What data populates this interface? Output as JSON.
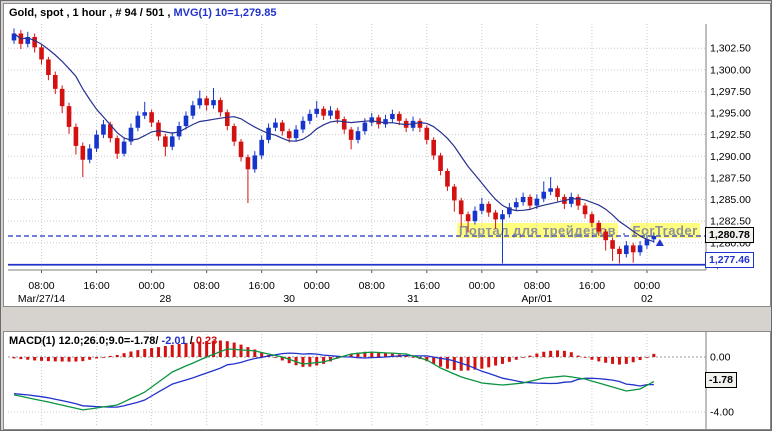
{
  "window": {
    "background": "#d6d3ce"
  },
  "main_chart": {
    "title": "Gold, spot , 1 hour , # 94 / 501 ,",
    "mvg_label": "MVG(1) 10=1,279.85",
    "watermark": [
      "Портал для трейдеров",
      ".",
      "ForTrader"
    ],
    "price_current": "1,280.78",
    "price_level": "1,277.46"
  },
  "macd_panel": {
    "title_prefix": "MACD(1) 12.0;26.0;9.0=-1.78/",
    "value_signal": "-2.01",
    "slash": "/",
    "value_hist": "0.23",
    "box_label": "-1.78"
  },
  "chart_data": [
    {
      "type": "candlestick",
      "title": "Gold, spot , 1 hour , # 94 / 501",
      "indicator_label": "MVG(1) 10=1,279.85",
      "ylim": [
        1276.85,
        1305.3
      ],
      "y_ticks": [
        [
          1302.5,
          "1,302.50"
        ],
        [
          1300,
          "1,300.00"
        ],
        [
          1297.5,
          "1,297.50"
        ],
        [
          1295,
          "1,295.00"
        ],
        [
          1292.5,
          "1,292.50"
        ],
        [
          1290,
          "1,290.00"
        ],
        [
          1287.5,
          "1,287.50"
        ],
        [
          1285,
          "1,285.00"
        ],
        [
          1282.5,
          "1,282.50"
        ],
        [
          1280,
          "1,280.00"
        ],
        [
          1277.5,
          "1,277.50"
        ]
      ],
      "x_ticks": [
        [
          4,
          "08:00"
        ],
        [
          12,
          "16:00"
        ],
        [
          20,
          "00:00"
        ],
        [
          28,
          "08:00"
        ],
        [
          36,
          "16:00"
        ],
        [
          44,
          "00:00"
        ],
        [
          52,
          "08:00"
        ],
        [
          60,
          "16:00"
        ],
        [
          68,
          "00:00"
        ],
        [
          76,
          "08:00"
        ],
        [
          84,
          "16:00"
        ],
        [
          92,
          "00:00"
        ]
      ],
      "date_ticks": [
        [
          4,
          "Mar/27/14"
        ],
        [
          22,
          "28"
        ],
        [
          40,
          "30"
        ],
        [
          58,
          "31"
        ],
        [
          76,
          "Apr/01"
        ],
        [
          92,
          "02"
        ]
      ],
      "levels": {
        "dashed_current": 1280.78,
        "solid_support": 1277.46
      },
      "mvg_period": 10,
      "colors": {
        "up": "#1535cc",
        "down": "#d41111",
        "mvg": "#26318f",
        "level": "#2233cc"
      },
      "candles": [
        [
          1303.4,
          1304.8,
          1303.0,
          1304.2
        ],
        [
          1304.2,
          1304.6,
          1302.4,
          1303.0
        ],
        [
          1303.0,
          1304.4,
          1302.6,
          1303.8
        ],
        [
          1303.8,
          1304.2,
          1302.0,
          1302.6
        ],
        [
          1302.6,
          1302.9,
          1300.6,
          1301.2
        ],
        [
          1301.2,
          1301.5,
          1298.8,
          1299.4
        ],
        [
          1299.4,
          1299.8,
          1297.2,
          1297.8
        ],
        [
          1297.8,
          1298.2,
          1295.0,
          1295.8
        ],
        [
          1295.8,
          1296.2,
          1292.6,
          1293.4
        ],
        [
          1293.4,
          1293.8,
          1290.2,
          1291.2
        ],
        [
          1291.2,
          1291.6,
          1287.6,
          1289.6
        ],
        [
          1289.6,
          1291.4,
          1289.2,
          1290.9
        ],
        [
          1290.9,
          1293.0,
          1290.5,
          1292.5
        ],
        [
          1292.5,
          1294.2,
          1292.1,
          1293.7
        ],
        [
          1293.7,
          1294.0,
          1291.6,
          1292.1
        ],
        [
          1292.1,
          1292.4,
          1289.7,
          1290.3
        ],
        [
          1290.3,
          1292.2,
          1290.0,
          1291.7
        ],
        [
          1291.7,
          1293.8,
          1291.3,
          1293.3
        ],
        [
          1293.3,
          1295.2,
          1292.9,
          1294.7
        ],
        [
          1294.7,
          1296.3,
          1294.3,
          1295.1
        ],
        [
          1295.1,
          1295.4,
          1293.4,
          1293.9
        ],
        [
          1293.9,
          1294.2,
          1291.8,
          1292.3
        ],
        [
          1292.3,
          1292.6,
          1290.0,
          1291.1
        ],
        [
          1291.1,
          1292.8,
          1290.7,
          1292.3
        ],
        [
          1292.3,
          1294.0,
          1291.9,
          1293.5
        ],
        [
          1293.5,
          1295.2,
          1293.1,
          1294.7
        ],
        [
          1294.7,
          1296.4,
          1294.3,
          1295.9
        ],
        [
          1295.9,
          1297.6,
          1295.5,
          1296.7
        ],
        [
          1296.7,
          1297.0,
          1295.3,
          1295.9
        ],
        [
          1295.9,
          1297.9,
          1295.5,
          1296.5
        ],
        [
          1296.5,
          1296.8,
          1294.6,
          1295.1
        ],
        [
          1295.1,
          1295.4,
          1293.0,
          1293.5
        ],
        [
          1293.5,
          1293.8,
          1291.2,
          1291.7
        ],
        [
          1291.7,
          1292.0,
          1289.4,
          1289.9
        ],
        [
          1289.9,
          1290.2,
          1284.6,
          1288.5
        ],
        [
          1288.5,
          1290.6,
          1288.1,
          1290.1
        ],
        [
          1290.1,
          1292.4,
          1289.7,
          1291.9
        ],
        [
          1291.9,
          1293.8,
          1291.5,
          1293.3
        ],
        [
          1293.3,
          1294.4,
          1292.9,
          1293.9
        ],
        [
          1293.9,
          1294.2,
          1292.4,
          1292.9
        ],
        [
          1292.9,
          1293.2,
          1291.6,
          1292.1
        ],
        [
          1292.1,
          1293.6,
          1291.7,
          1293.1
        ],
        [
          1293.1,
          1294.6,
          1292.7,
          1294.1
        ],
        [
          1294.1,
          1295.4,
          1293.7,
          1294.9
        ],
        [
          1294.9,
          1296.4,
          1294.5,
          1295.5
        ],
        [
          1295.5,
          1295.8,
          1294.2,
          1294.7
        ],
        [
          1294.7,
          1295.8,
          1294.3,
          1295.3
        ],
        [
          1295.3,
          1295.6,
          1293.8,
          1294.3
        ],
        [
          1294.3,
          1294.6,
          1292.6,
          1293.1
        ],
        [
          1293.1,
          1293.4,
          1290.8,
          1291.9
        ],
        [
          1291.9,
          1293.4,
          1291.5,
          1292.9
        ],
        [
          1292.9,
          1294.4,
          1292.5,
          1293.9
        ],
        [
          1293.9,
          1295.0,
          1293.5,
          1294.5
        ],
        [
          1294.5,
          1294.8,
          1293.2,
          1293.7
        ],
        [
          1293.7,
          1294.8,
          1293.3,
          1294.3
        ],
        [
          1294.3,
          1295.4,
          1293.9,
          1294.9
        ],
        [
          1294.9,
          1295.2,
          1293.6,
          1294.1
        ],
        [
          1294.1,
          1294.4,
          1292.8,
          1293.3
        ],
        [
          1293.3,
          1294.6,
          1292.9,
          1294.1
        ],
        [
          1294.1,
          1294.4,
          1292.8,
          1293.3
        ],
        [
          1293.3,
          1293.6,
          1291.4,
          1291.9
        ],
        [
          1291.9,
          1292.2,
          1289.6,
          1290.1
        ],
        [
          1290.1,
          1290.4,
          1287.8,
          1288.3
        ],
        [
          1288.3,
          1288.6,
          1286.0,
          1286.5
        ],
        [
          1286.5,
          1286.8,
          1283.6,
          1284.9
        ],
        [
          1284.9,
          1285.2,
          1281.9,
          1283.3
        ],
        [
          1283.3,
          1283.6,
          1281.2,
          1282.5
        ],
        [
          1282.5,
          1284.2,
          1282.1,
          1283.7
        ],
        [
          1283.7,
          1285.2,
          1283.3,
          1284.5
        ],
        [
          1284.5,
          1284.8,
          1283.0,
          1283.5
        ],
        [
          1283.5,
          1283.8,
          1281.6,
          1282.7
        ],
        [
          1282.7,
          1283.8,
          1277.6,
          1283.3
        ],
        [
          1283.3,
          1284.6,
          1282.9,
          1284.1
        ],
        [
          1284.1,
          1285.2,
          1283.7,
          1284.7
        ],
        [
          1284.7,
          1285.8,
          1284.3,
          1285.3
        ],
        [
          1285.3,
          1285.6,
          1283.8,
          1284.3
        ],
        [
          1284.3,
          1285.6,
          1283.9,
          1285.1
        ],
        [
          1285.1,
          1287.1,
          1284.7,
          1285.9
        ],
        [
          1285.9,
          1287.6,
          1285.5,
          1286.3
        ],
        [
          1286.3,
          1286.6,
          1284.8,
          1285.3
        ],
        [
          1285.3,
          1285.6,
          1283.9,
          1284.5
        ],
        [
          1284.5,
          1285.8,
          1284.1,
          1285.3
        ],
        [
          1285.3,
          1285.6,
          1283.8,
          1284.3
        ],
        [
          1284.3,
          1284.6,
          1282.8,
          1283.3
        ],
        [
          1283.3,
          1283.6,
          1281.8,
          1282.3
        ],
        [
          1282.3,
          1282.6,
          1280.8,
          1281.3
        ],
        [
          1281.3,
          1281.6,
          1279.1,
          1280.3
        ],
        [
          1280.3,
          1280.6,
          1277.9,
          1279.3
        ],
        [
          1279.3,
          1279.6,
          1277.6,
          1278.7
        ],
        [
          1278.7,
          1280.2,
          1278.3,
          1279.7
        ],
        [
          1279.7,
          1280.0,
          1277.7,
          1278.9
        ],
        [
          1278.9,
          1280.2,
          1278.5,
          1279.7
        ],
        [
          1279.7,
          1280.9,
          1279.3,
          1280.4
        ],
        [
          1280.4,
          1281.2,
          1280.0,
          1280.78
        ]
      ]
    },
    {
      "type": "macd",
      "label": "MACD(1) 12.0;26.0;9.0=-1.78/-2.01/0.23",
      "ylim": [
        -5.2,
        1.67
      ],
      "y_ticks": [
        [
          0,
          "0.00"
        ],
        [
          -4,
          "-4.00"
        ]
      ],
      "current": {
        "macd": -1.78,
        "signal": -2.01,
        "hist": 0.23
      },
      "colors": {
        "macd_line": "#0a9440",
        "signal_line": "#2233cc",
        "hist": "#d41111"
      },
      "macd": [
        -2.76,
        -2.86,
        -2.96,
        -3.07,
        -3.17,
        -3.27,
        -3.39,
        -3.5,
        -3.62,
        -3.73,
        -3.85,
        -3.78,
        -3.71,
        -3.63,
        -3.56,
        -3.49,
        -3.26,
        -3.02,
        -2.79,
        -2.55,
        -2.19,
        -1.82,
        -1.46,
        -1.09,
        -0.87,
        -0.65,
        -0.44,
        -0.22,
        0.0,
        0.19,
        0.39,
        0.58,
        0.55,
        0.51,
        0.48,
        0.44,
        0.33,
        0.22,
        0.11,
        0.0,
        -0.17,
        -0.34,
        -0.51,
        -0.46,
        -0.41,
        -0.36,
        -0.22,
        -0.07,
        0.07,
        0.22,
        0.27,
        0.31,
        0.36,
        0.33,
        0.3,
        0.28,
        0.25,
        0.22,
        0.07,
        -0.07,
        -0.22,
        -0.51,
        -0.8,
        -1.02,
        -1.24,
        -1.45,
        -1.6,
        -1.74,
        -1.89,
        -1.94,
        -1.99,
        -2.04,
        -1.99,
        -1.94,
        -1.89,
        -1.77,
        -1.65,
        -1.53,
        -1.48,
        -1.43,
        -1.38,
        -1.45,
        -1.53,
        -1.6,
        -1.75,
        -1.89,
        -2.04,
        -2.18,
        -2.33,
        -2.47,
        -2.4,
        -2.33,
        -2.06,
        -1.78
      ],
      "hist": [
        -0.1,
        -0.15,
        -0.2,
        -0.25,
        -0.28,
        -0.3,
        -0.32,
        -0.33,
        -0.34,
        -0.33,
        -0.3,
        -0.2,
        -0.1,
        0.0,
        0.08,
        0.15,
        0.28,
        0.4,
        0.5,
        0.58,
        0.65,
        0.72,
        0.8,
        0.88,
        0.95,
        1.02,
        1.08,
        1.12,
        1.16,
        1.18,
        1.2,
        1.15,
        1.05,
        0.9,
        0.72,
        0.55,
        0.35,
        0.15,
        -0.05,
        -0.25,
        -0.45,
        -0.6,
        -0.72,
        -0.7,
        -0.62,
        -0.5,
        -0.32,
        -0.12,
        0.06,
        0.22,
        0.32,
        0.38,
        0.4,
        0.36,
        0.3,
        0.24,
        0.18,
        0.1,
        -0.02,
        -0.15,
        -0.3,
        -0.5,
        -0.7,
        -0.85,
        -0.95,
        -1.0,
        -0.98,
        -0.92,
        -0.85,
        -0.75,
        -0.62,
        -0.5,
        -0.35,
        -0.2,
        -0.05,
        0.1,
        0.25,
        0.38,
        0.45,
        0.48,
        0.45,
        0.35,
        0.1,
        -0.05,
        -0.2,
        -0.32,
        -0.42,
        -0.5,
        -0.55,
        -0.5,
        -0.38,
        -0.22,
        -0.05,
        0.23
      ]
    }
  ]
}
